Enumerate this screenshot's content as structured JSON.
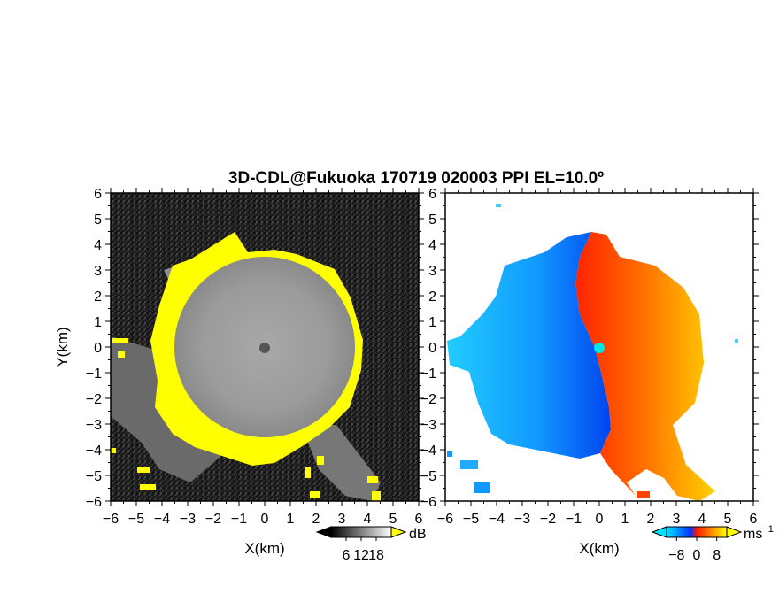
{
  "title": "3D-CDL@Fukuoka 170719 020003 PPI EL=10.0º",
  "chart_data": [
    {
      "type": "heatmap",
      "panel": "left",
      "quantity": "backscatter intensity",
      "xlabel": "X(km)",
      "ylabel": "Y(km)",
      "xlim": [
        -6,
        6
      ],
      "ylim": [
        -6,
        6
      ],
      "xticks": [
        -6,
        -5,
        -4,
        -3,
        -2,
        -1,
        0,
        1,
        2,
        3,
        4,
        5,
        6
      ],
      "yticks": [
        -6,
        -5,
        -4,
        -3,
        -2,
        -1,
        0,
        1,
        2,
        3,
        4,
        5,
        6
      ],
      "colorbar": {
        "unit": "dB",
        "ticks": [
          6,
          12,
          18
        ],
        "range": [
          0,
          24
        ],
        "colors": [
          "#000000",
          "#ffffff"
        ],
        "extend_high_color": "#ffff00"
      }
    },
    {
      "type": "heatmap",
      "panel": "right",
      "quantity": "Doppler radial velocity",
      "xlabel": "X(km)",
      "xlim": [
        -6,
        6
      ],
      "ylim": [
        -6,
        6
      ],
      "xticks": [
        -6,
        -5,
        -4,
        -3,
        -2,
        -1,
        0,
        1,
        2,
        3,
        4,
        5,
        6
      ],
      "yticks": [
        -6,
        -5,
        -4,
        -3,
        -2,
        -1,
        0,
        1,
        2,
        3,
        4,
        5,
        6
      ],
      "colorbar": {
        "unit": "ms",
        "unit_exponent": "−1",
        "ticks": [
          -8,
          0,
          8
        ],
        "range": [
          -12,
          12
        ],
        "colors": [
          "#00e5ff",
          "#0033ff",
          "#ff1a00",
          "#ffff00"
        ]
      }
    }
  ]
}
